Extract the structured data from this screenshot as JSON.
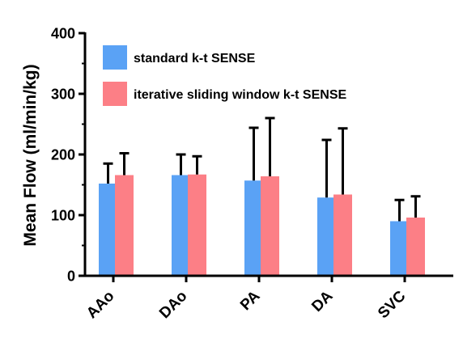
{
  "chart_data": {
    "type": "bar",
    "ylabel": "Mean Flow (ml/min/kg)",
    "xlabel": "",
    "ylim": [
      0,
      400
    ],
    "yticks": [
      0,
      100,
      200,
      300,
      400
    ],
    "categories": [
      "AAo",
      "DAo",
      "PA",
      "DA",
      "SVC"
    ],
    "series": [
      {
        "name": "standard k-t SENSE",
        "color": "#5aa2f5",
        "values": [
          152,
          166,
          157,
          129,
          90
        ],
        "error_upper": [
          185,
          200,
          244,
          224,
          125
        ]
      },
      {
        "name": "iterative sliding window k-t SENSE",
        "color": "#fc7f86",
        "values": [
          166,
          167,
          164,
          134,
          96
        ],
        "error_upper": [
          202,
          197,
          260,
          243,
          131
        ]
      }
    ],
    "legend_position": "top-left",
    "grid": false
  }
}
